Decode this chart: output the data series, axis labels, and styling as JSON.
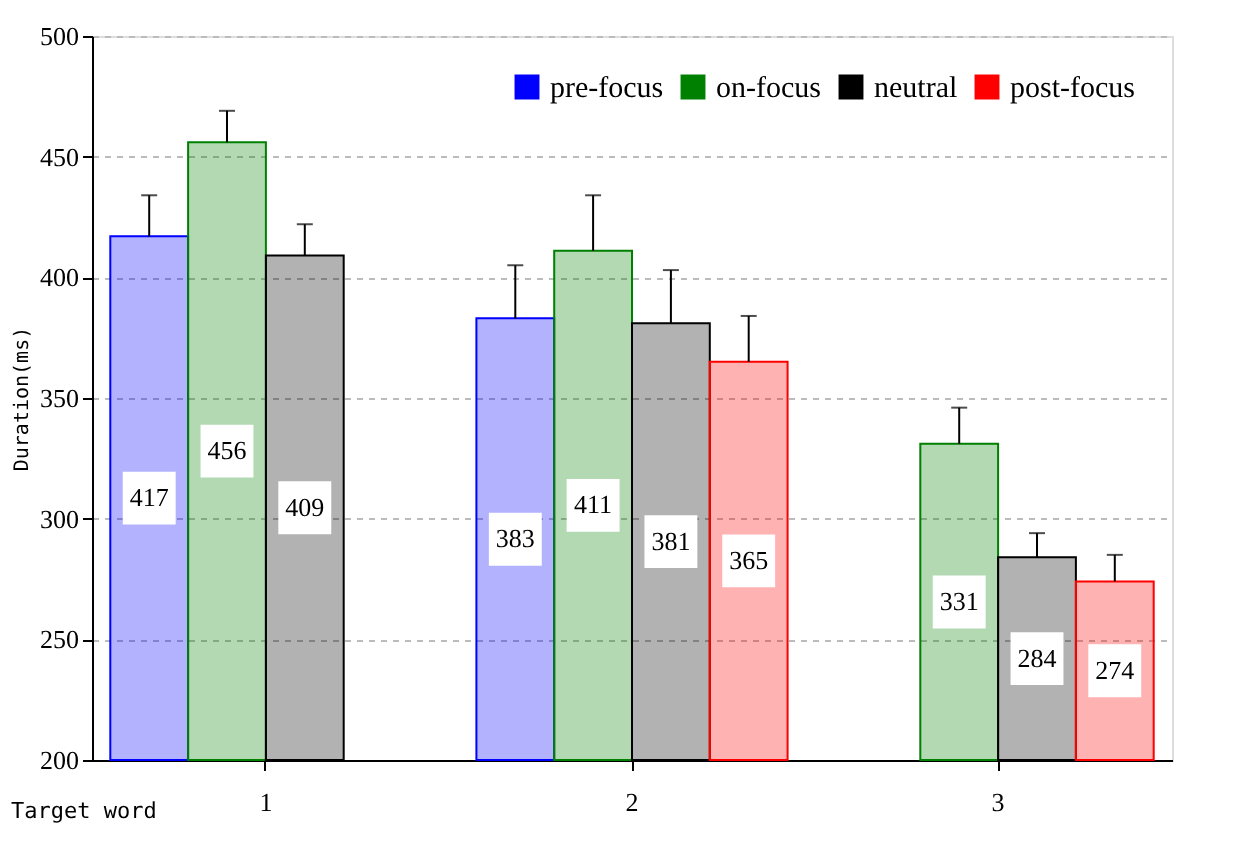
{
  "chart_data": {
    "type": "bar",
    "ylabel": "Duration(ms)",
    "categories": [
      "1",
      "2",
      "3"
    ],
    "series": [
      {
        "name": "pre-focus",
        "color": "#0000ff",
        "values": [
          417,
          383,
          null
        ],
        "errors": [
          [
            417,
            434
          ],
          [
            383,
            405
          ],
          null
        ]
      },
      {
        "name": "on-focus",
        "color": "#008000",
        "values": [
          456,
          411,
          331
        ],
        "errors": [
          [
            456,
            469
          ],
          [
            411,
            434
          ],
          [
            331,
            346
          ]
        ]
      },
      {
        "name": "neutral",
        "color": "#000000",
        "values": [
          409,
          381,
          284
        ],
        "errors": [
          [
            409,
            422
          ],
          [
            381,
            403
          ],
          [
            284,
            294
          ]
        ]
      },
      {
        "name": "post-focus",
        "color": "#ff0000",
        "values": [
          null,
          365,
          274
        ],
        "errors": [
          null,
          [
            365,
            384
          ],
          [
            274,
            285
          ]
        ]
      }
    ],
    "ylim": [
      200,
      500
    ],
    "yticks": [
      200,
      250,
      300,
      350,
      400,
      450,
      500
    ],
    "grid": "y",
    "legend": "top right",
    "data_labels": true,
    "annotations": [
      "Target word"
    ]
  }
}
